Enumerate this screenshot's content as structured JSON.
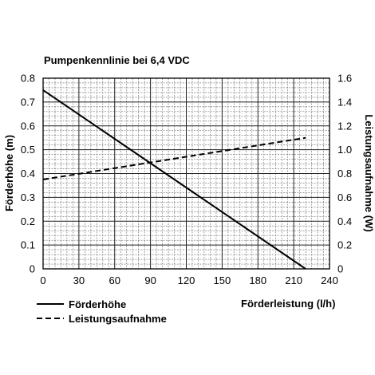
{
  "chart_data": {
    "type": "line",
    "title": "Pumpenkennlinie bei 6,4 VDC",
    "xlabel": "Förderleistung (l/h)",
    "ylabel_left": "Förderhöhe (m)",
    "ylabel_right": "Leistungsaufnahme (W)",
    "xlim": [
      0,
      240
    ],
    "ylim_left": [
      0,
      0.8
    ],
    "ylim_right": [
      0,
      1.6
    ],
    "x_ticks": [
      "0",
      "30",
      "60",
      "90",
      "120",
      "150",
      "180",
      "210",
      "240"
    ],
    "y_ticks_left": [
      "0",
      "0.1",
      "0.2",
      "0.3",
      "0.4",
      "0.5",
      "0.6",
      "0.7",
      "0.8"
    ],
    "y_ticks_right": [
      "0",
      "0.2",
      "0.4",
      "0.6",
      "0.8",
      "1.0",
      "1.2",
      "1.4",
      "1.6"
    ],
    "grid": true,
    "legend_position": "bottom-left",
    "series": [
      {
        "name": "Förderhöhe",
        "axis": "left",
        "style": "solid",
        "x": [
          0,
          220
        ],
        "y": [
          0.75,
          0.0
        ]
      },
      {
        "name": "Leistungsaufnahme",
        "axis": "right",
        "style": "dashed",
        "x": [
          0,
          220
        ],
        "y": [
          0.75,
          1.1
        ]
      }
    ]
  }
}
